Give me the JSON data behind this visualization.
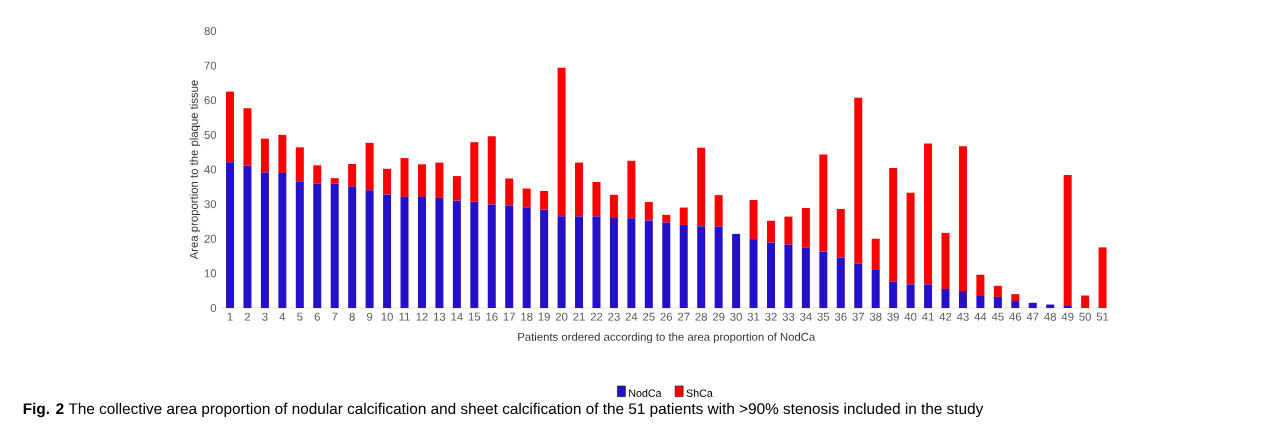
{
  "chart_data": {
    "type": "bar",
    "stacked": true,
    "categories": [
      "1",
      "2",
      "3",
      "4",
      "5",
      "6",
      "7",
      "8",
      "9",
      "10",
      "11",
      "12",
      "13",
      "14",
      "15",
      "16",
      "17",
      "18",
      "19",
      "20",
      "21",
      "22",
      "23",
      "24",
      "25",
      "26",
      "27",
      "28",
      "29",
      "30",
      "31",
      "32",
      "33",
      "34",
      "35",
      "36",
      "37",
      "38",
      "39",
      "40",
      "41",
      "42",
      "43",
      "44",
      "45",
      "46",
      "47",
      "48",
      "49",
      "50",
      "51"
    ],
    "series": [
      {
        "name": "NodCa",
        "color": "#2410c8",
        "values": [
          42.1,
          41.1,
          39.1,
          39.0,
          36.5,
          35.9,
          35.9,
          35.0,
          34.0,
          32.8,
          32.1,
          32.1,
          31.8,
          31.0,
          30.7,
          29.9,
          29.6,
          29.0,
          28.4,
          26.5,
          26.4,
          26.4,
          26.0,
          25.9,
          25.3,
          24.7,
          24.0,
          23.6,
          23.5,
          21.4,
          19.9,
          18.9,
          18.3,
          17.4,
          16.3,
          14.6,
          12.9,
          11.0,
          7.6,
          6.8,
          6.8,
          5.5,
          4.9,
          3.7,
          3.2,
          2.0,
          1.5,
          1.0,
          0.6,
          0,
          0
        ]
      },
      {
        "name": "ShCa",
        "color": "#ff0000",
        "values": [
          20.4,
          16.6,
          9.8,
          11.0,
          9.9,
          5.3,
          1.6,
          6.6,
          13.7,
          7.4,
          11.2,
          9.4,
          10.2,
          7.1,
          17.2,
          19.7,
          7.8,
          5.5,
          5.4,
          42.9,
          15.6,
          10.0,
          6.7,
          16.6,
          5.3,
          2.2,
          5.0,
          22.7,
          9.1,
          0,
          11.3,
          6.3,
          8.1,
          11.5,
          28.0,
          14.0,
          47.8,
          9.0,
          32.8,
          26.5,
          40.7,
          16.2,
          41.8,
          5.9,
          3.2,
          2.0,
          0,
          0,
          37.8,
          3.6,
          17.5
        ]
      }
    ],
    "xlabel": "Patients ordered according to the area proportion of NodCa",
    "ylabel": "Area proportion to the plaque tissue",
    "ylim": [
      0,
      80
    ],
    "yticks": [
      0,
      10,
      20,
      30,
      40,
      50,
      60,
      70,
      80
    ],
    "legend": "bottom",
    "annotations": [
      "**Fig. 2** The collective area proportion of nodular calcification and sheet calcification of the 51 patients with >90% stenosis included in the study"
    ]
  }
}
